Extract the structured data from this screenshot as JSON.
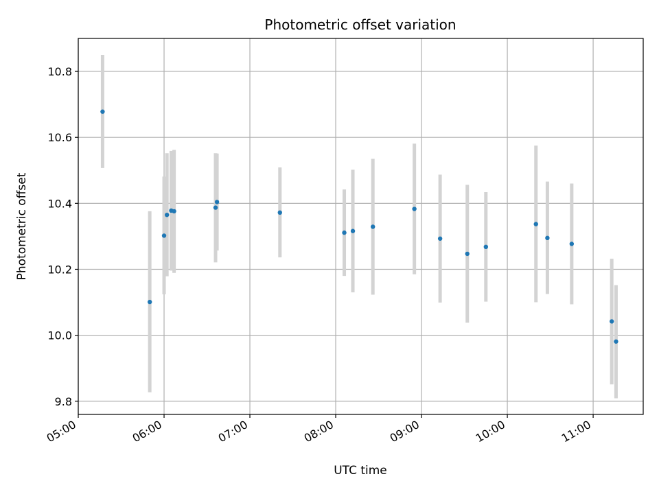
{
  "chart_data": {
    "type": "scatter",
    "title": "Photometric offset variation",
    "xlabel": "UTC time",
    "ylabel": "Photometric offset",
    "x_tick_labels": [
      "05:00",
      "06:00",
      "07:00",
      "08:00",
      "09:00",
      "10:00",
      "11:00"
    ],
    "x_ticks": [
      "05:00",
      "06:00",
      "07:00",
      "08:00",
      "09:00",
      "10:00",
      "11:00"
    ],
    "xlim": [
      "05:00",
      "11:35"
    ],
    "y_tick_labels": [
      "9.8",
      "10.0",
      "10.2",
      "10.4",
      "10.6",
      "10.8"
    ],
    "y_ticks": [
      9.8,
      10.0,
      10.2,
      10.4,
      10.6,
      10.8
    ],
    "ylim": [
      9.76,
      10.9
    ],
    "grid": true,
    "colors": {
      "points": "#1f77b4",
      "errorbars": "#d3d3d3",
      "grid": "#b0b0b0"
    },
    "points": [
      {
        "x": "05:17",
        "y": 10.678,
        "ylow": 10.507,
        "yhigh": 10.85
      },
      {
        "x": "05:50",
        "y": 10.101,
        "ylow": 9.827,
        "yhigh": 10.376
      },
      {
        "x": "06:00",
        "y": 10.302,
        "ylow": 10.124,
        "yhigh": 10.481
      },
      {
        "x": "06:02",
        "y": 10.365,
        "ylow": 10.179,
        "yhigh": 10.552
      },
      {
        "x": "06:05",
        "y": 10.378,
        "ylow": 10.196,
        "yhigh": 10.559
      },
      {
        "x": "06:07",
        "y": 10.376,
        "ylow": 10.189,
        "yhigh": 10.562
      },
      {
        "x": "06:36",
        "y": 10.387,
        "ylow": 10.221,
        "yhigh": 10.552
      },
      {
        "x": "06:37",
        "y": 10.404,
        "ylow": 10.257,
        "yhigh": 10.551
      },
      {
        "x": "07:21",
        "y": 10.372,
        "ylow": 10.236,
        "yhigh": 10.509
      },
      {
        "x": "08:06",
        "y": 10.311,
        "ylow": 10.18,
        "yhigh": 10.442
      },
      {
        "x": "08:12",
        "y": 10.316,
        "ylow": 10.13,
        "yhigh": 10.502
      },
      {
        "x": "08:26",
        "y": 10.329,
        "ylow": 10.123,
        "yhigh": 10.535
      },
      {
        "x": "08:55",
        "y": 10.383,
        "ylow": 10.185,
        "yhigh": 10.581
      },
      {
        "x": "09:13",
        "y": 10.293,
        "ylow": 10.099,
        "yhigh": 10.487
      },
      {
        "x": "09:32",
        "y": 10.247,
        "ylow": 10.038,
        "yhigh": 10.456
      },
      {
        "x": "09:45",
        "y": 10.268,
        "ylow": 10.102,
        "yhigh": 10.434
      },
      {
        "x": "10:20",
        "y": 10.337,
        "ylow": 10.1,
        "yhigh": 10.575
      },
      {
        "x": "10:28",
        "y": 10.295,
        "ylow": 10.125,
        "yhigh": 10.466
      },
      {
        "x": "10:45",
        "y": 10.277,
        "ylow": 10.094,
        "yhigh": 10.46
      },
      {
        "x": "11:13",
        "y": 10.042,
        "ylow": 9.851,
        "yhigh": 10.232
      },
      {
        "x": "11:16",
        "y": 9.981,
        "ylow": 9.809,
        "yhigh": 10.152
      }
    ]
  }
}
